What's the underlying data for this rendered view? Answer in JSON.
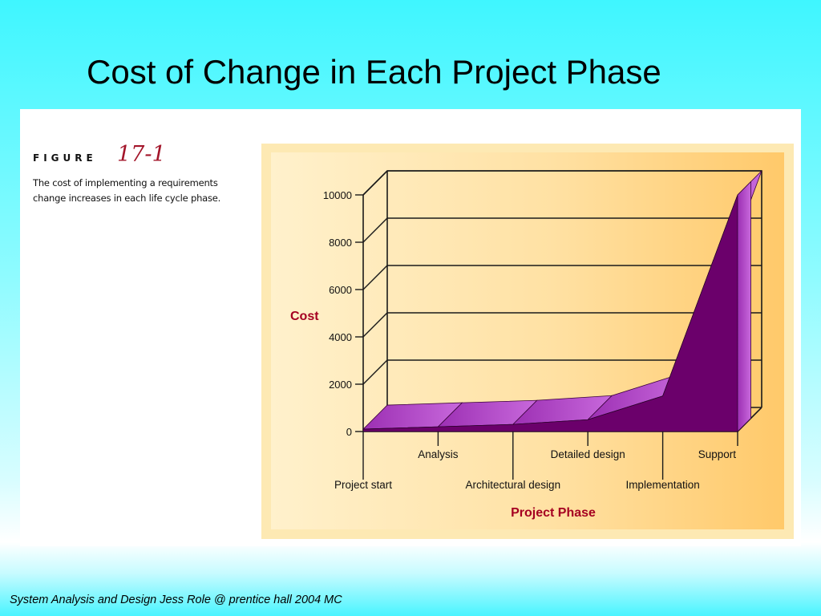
{
  "slide": {
    "title": "Cost of Change in Each Project Phase",
    "footer": "System Analysis and Design Jess Role @ prentice hall 2004 MC"
  },
  "figure": {
    "label": "FIGURE",
    "number": "17-1",
    "caption_line1": "The cost of implementing a requirements",
    "caption_line2": "change increases in each life cycle phase."
  },
  "chart_data": {
    "type": "area",
    "title": "",
    "xlabel": "Project Phase",
    "ylabel": "Cost",
    "ylim": [
      0,
      10000
    ],
    "y_ticks": [
      0,
      2000,
      4000,
      6000,
      8000,
      10000
    ],
    "categories": [
      "Project start",
      "Analysis",
      "Architectural design",
      "Detailed design",
      "Implementation",
      "Support"
    ],
    "values": [
      100,
      200,
      300,
      500,
      1500,
      10000
    ],
    "grid": true,
    "style": "3d",
    "colors": {
      "fill": "#6b006b",
      "highlight": "#a53cc6",
      "label": "#a50021"
    }
  }
}
